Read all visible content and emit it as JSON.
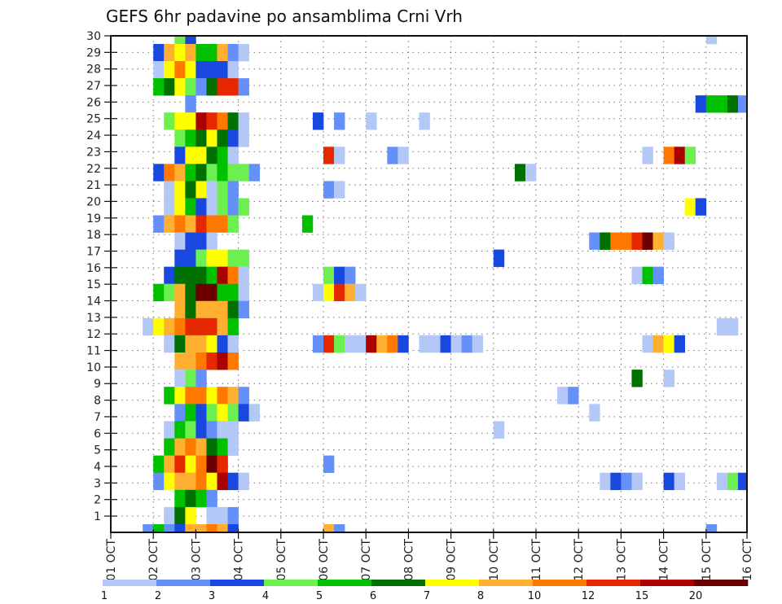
{
  "chart_data": {
    "type": "heatmap",
    "title": "GEFS 6hr padavine po ansamblima Crni Vrh",
    "xlabel": "",
    "ylabel": "",
    "x_tick_labels": [
      "01 OCT",
      "02 OCT",
      "03 OCT",
      "04 OCT",
      "05 OCT",
      "06 OCT",
      "07 OCT",
      "08 OCT",
      "09 OCT",
      "10 OCT",
      "11 OCT",
      "12 OCT",
      "13 OCT",
      "14 OCT",
      "15 OCT",
      "16 OCT"
    ],
    "x_unit": "6-hour step from 01 OCT 00Z",
    "x_range": [
      0,
      60
    ],
    "y_tick_labels": [
      "1",
      "2",
      "3",
      "4",
      "5",
      "6",
      "7",
      "8",
      "9",
      "10",
      "11",
      "12",
      "13",
      "14",
      "15",
      "16",
      "17",
      "18",
      "19",
      "20",
      "21",
      "22",
      "23",
      "24",
      "25",
      "26",
      "27",
      "28",
      "29",
      "30"
    ],
    "y_range": [
      0,
      30
    ],
    "grid": true,
    "legend": {
      "placement": "bottom",
      "levels": [
        "1",
        "2",
        "3",
        "4",
        "5",
        "6",
        "7",
        "8",
        "10",
        "12",
        "15",
        "20"
      ],
      "colors": [
        "#b4c8f8",
        "#6490f8",
        "#1848e0",
        "#6cf050",
        "#00c000",
        "#007000",
        "#ffff00",
        "#ffb030",
        "#ff7800",
        "#e62800",
        "#aa0000",
        "#6c0000"
      ]
    },
    "cell_encoding": "[step, color_class] where color_class indexes legend.levels (value between that level and the next)",
    "rows": [
      {
        "member": 30,
        "cells": [
          [
            6,
            3
          ],
          [
            7,
            2
          ],
          [
            56,
            0
          ]
        ]
      },
      {
        "member": 29,
        "cells": [
          [
            4,
            2
          ],
          [
            5,
            7
          ],
          [
            6,
            6
          ],
          [
            7,
            7
          ],
          [
            8,
            4
          ],
          [
            9,
            4
          ],
          [
            10,
            7
          ],
          [
            11,
            1
          ],
          [
            12,
            0
          ]
        ]
      },
      {
        "member": 28,
        "cells": [
          [
            4,
            0
          ],
          [
            5,
            6
          ],
          [
            6,
            8
          ],
          [
            7,
            6
          ],
          [
            8,
            2
          ],
          [
            9,
            2
          ],
          [
            10,
            2
          ],
          [
            11,
            0
          ]
        ]
      },
      {
        "member": 27,
        "cells": [
          [
            4,
            4
          ],
          [
            5,
            5
          ],
          [
            6,
            6
          ],
          [
            7,
            3
          ],
          [
            8,
            1
          ],
          [
            9,
            5
          ],
          [
            10,
            9
          ],
          [
            11,
            9
          ],
          [
            12,
            1
          ]
        ]
      },
      {
        "member": 26,
        "cells": [
          [
            7,
            1
          ],
          [
            55,
            2
          ],
          [
            56,
            4
          ],
          [
            57,
            4
          ],
          [
            58,
            5
          ],
          [
            59,
            1
          ]
        ]
      },
      {
        "member": 25,
        "cells": [
          [
            5,
            3
          ],
          [
            6,
            6
          ],
          [
            7,
            6
          ],
          [
            8,
            10
          ],
          [
            9,
            9
          ],
          [
            10,
            8
          ],
          [
            11,
            5
          ],
          [
            12,
            0
          ],
          [
            19,
            2
          ],
          [
            21,
            1
          ],
          [
            24,
            0
          ],
          [
            29,
            0
          ]
        ]
      },
      {
        "member": 24,
        "cells": [
          [
            6,
            3
          ],
          [
            7,
            4
          ],
          [
            8,
            5
          ],
          [
            9,
            6
          ],
          [
            10,
            5
          ],
          [
            11,
            2
          ],
          [
            12,
            0
          ]
        ]
      },
      {
        "member": 23,
        "cells": [
          [
            6,
            2
          ],
          [
            7,
            6
          ],
          [
            8,
            6
          ],
          [
            9,
            5
          ],
          [
            10,
            4
          ],
          [
            11,
            0
          ],
          [
            20,
            9
          ],
          [
            21,
            0
          ],
          [
            26,
            1
          ],
          [
            27,
            0
          ],
          [
            50,
            0
          ],
          [
            52,
            8
          ],
          [
            53,
            10
          ],
          [
            54,
            3
          ]
        ]
      },
      {
        "member": 22,
        "cells": [
          [
            4,
            2
          ],
          [
            5,
            8
          ],
          [
            6,
            7
          ],
          [
            7,
            4
          ],
          [
            8,
            5
          ],
          [
            9,
            3
          ],
          [
            10,
            4
          ],
          [
            11,
            3
          ],
          [
            12,
            3
          ],
          [
            13,
            1
          ],
          [
            38,
            5
          ],
          [
            39,
            0
          ]
        ]
      },
      {
        "member": 21,
        "cells": [
          [
            5,
            0
          ],
          [
            6,
            6
          ],
          [
            7,
            5
          ],
          [
            8,
            6
          ],
          [
            9,
            0
          ],
          [
            10,
            3
          ],
          [
            11,
            1
          ],
          [
            20,
            1
          ],
          [
            21,
            0
          ]
        ]
      },
      {
        "member": 20,
        "cells": [
          [
            5,
            0
          ],
          [
            6,
            6
          ],
          [
            7,
            4
          ],
          [
            8,
            2
          ],
          [
            9,
            0
          ],
          [
            10,
            3
          ],
          [
            11,
            1
          ],
          [
            12,
            3
          ],
          [
            54,
            6
          ],
          [
            55,
            2
          ]
        ]
      },
      {
        "member": 19,
        "cells": [
          [
            4,
            1
          ],
          [
            5,
            7
          ],
          [
            6,
            8
          ],
          [
            7,
            7
          ],
          [
            8,
            9
          ],
          [
            9,
            8
          ],
          [
            10,
            8
          ],
          [
            11,
            3
          ],
          [
            18,
            4
          ]
        ]
      },
      {
        "member": 18,
        "cells": [
          [
            6,
            0
          ],
          [
            7,
            2
          ],
          [
            8,
            2
          ],
          [
            9,
            0
          ],
          [
            45,
            1
          ],
          [
            46,
            5
          ],
          [
            47,
            8
          ],
          [
            48,
            8
          ],
          [
            49,
            9
          ],
          [
            50,
            11
          ],
          [
            51,
            7
          ],
          [
            52,
            0
          ]
        ]
      },
      {
        "member": 17,
        "cells": [
          [
            6,
            2
          ],
          [
            7,
            2
          ],
          [
            8,
            3
          ],
          [
            9,
            6
          ],
          [
            10,
            6
          ],
          [
            11,
            3
          ],
          [
            12,
            3
          ],
          [
            36,
            2
          ]
        ]
      },
      {
        "member": 16,
        "cells": [
          [
            5,
            2
          ],
          [
            6,
            5
          ],
          [
            7,
            5
          ],
          [
            8,
            5
          ],
          [
            9,
            4
          ],
          [
            10,
            10
          ],
          [
            11,
            8
          ],
          [
            12,
            0
          ],
          [
            20,
            3
          ],
          [
            21,
            2
          ],
          [
            22,
            1
          ],
          [
            49,
            0
          ],
          [
            50,
            4
          ],
          [
            51,
            1
          ]
        ]
      },
      {
        "member": 15,
        "cells": [
          [
            4,
            4
          ],
          [
            5,
            3
          ],
          [
            6,
            7
          ],
          [
            7,
            5
          ],
          [
            8,
            11
          ],
          [
            9,
            11
          ],
          [
            10,
            4
          ],
          [
            11,
            4
          ],
          [
            12,
            0
          ],
          [
            19,
            0
          ],
          [
            20,
            6
          ],
          [
            21,
            9
          ],
          [
            22,
            7
          ],
          [
            23,
            0
          ]
        ]
      },
      {
        "member": 14,
        "cells": [
          [
            6,
            7
          ],
          [
            7,
            5
          ],
          [
            8,
            7
          ],
          [
            9,
            7
          ],
          [
            10,
            7
          ],
          [
            11,
            5
          ],
          [
            12,
            1
          ]
        ]
      },
      {
        "member": 12,
        "cells": [
          [
            3,
            0
          ],
          [
            4,
            6
          ],
          [
            5,
            7
          ],
          [
            6,
            8
          ],
          [
            7,
            9
          ],
          [
            8,
            9
          ],
          [
            9,
            9
          ],
          [
            10,
            7
          ],
          [
            11,
            4
          ],
          [
            57,
            0
          ],
          [
            58,
            0
          ]
        ]
      },
      {
        "member": 11,
        "cells": [
          [
            5,
            0
          ],
          [
            6,
            5
          ],
          [
            7,
            7
          ],
          [
            8,
            7
          ],
          [
            9,
            6
          ],
          [
            10,
            2
          ],
          [
            11,
            0
          ],
          [
            19,
            1
          ],
          [
            20,
            9
          ],
          [
            21,
            3
          ],
          [
            22,
            0
          ],
          [
            23,
            0
          ],
          [
            24,
            10
          ],
          [
            25,
            7
          ],
          [
            26,
            8
          ],
          [
            27,
            2
          ],
          [
            29,
            0
          ],
          [
            30,
            0
          ],
          [
            31,
            2
          ],
          [
            32,
            0
          ],
          [
            33,
            1
          ],
          [
            34,
            0
          ],
          [
            50,
            0
          ],
          [
            51,
            7
          ],
          [
            52,
            6
          ],
          [
            53,
            2
          ]
        ]
      },
      {
        "member": 10,
        "cells": [
          [
            6,
            7
          ],
          [
            7,
            7
          ],
          [
            8,
            8
          ],
          [
            9,
            9
          ],
          [
            10,
            10
          ],
          [
            11,
            8
          ]
        ]
      },
      {
        "member": 9,
        "cells": [
          [
            6,
            0
          ],
          [
            7,
            3
          ],
          [
            8,
            1
          ],
          [
            49,
            5
          ],
          [
            52,
            0
          ]
        ]
      },
      {
        "member": 8,
        "cells": [
          [
            5,
            4
          ],
          [
            6,
            6
          ],
          [
            7,
            8
          ],
          [
            8,
            8
          ],
          [
            9,
            6
          ],
          [
            10,
            8
          ],
          [
            11,
            7
          ],
          [
            12,
            1
          ],
          [
            42,
            0
          ],
          [
            43,
            1
          ]
        ]
      },
      {
        "member": 7,
        "cells": [
          [
            6,
            1
          ],
          [
            7,
            4
          ],
          [
            8,
            2
          ],
          [
            9,
            3
          ],
          [
            10,
            6
          ],
          [
            11,
            3
          ],
          [
            12,
            2
          ],
          [
            13,
            0
          ],
          [
            45,
            0
          ]
        ]
      },
      {
        "member": 6,
        "cells": [
          [
            5,
            0
          ],
          [
            6,
            4
          ],
          [
            7,
            3
          ],
          [
            8,
            2
          ],
          [
            9,
            1
          ],
          [
            10,
            0
          ],
          [
            11,
            0
          ],
          [
            36,
            0
          ]
        ]
      },
      {
        "member": 5,
        "cells": [
          [
            5,
            4
          ],
          [
            6,
            7
          ],
          [
            7,
            8
          ],
          [
            8,
            7
          ],
          [
            9,
            5
          ],
          [
            10,
            4
          ],
          [
            11,
            0
          ]
        ]
      },
      {
        "member": 4,
        "cells": [
          [
            4,
            4
          ],
          [
            5,
            7
          ],
          [
            6,
            9
          ],
          [
            7,
            6
          ],
          [
            8,
            8
          ],
          [
            9,
            11
          ],
          [
            10,
            9
          ],
          [
            20,
            1
          ]
        ]
      },
      {
        "member": 3,
        "cells": [
          [
            4,
            1
          ],
          [
            5,
            6
          ],
          [
            6,
            7
          ],
          [
            7,
            7
          ],
          [
            8,
            8
          ],
          [
            9,
            6
          ],
          [
            10,
            10
          ],
          [
            11,
            2
          ],
          [
            12,
            0
          ],
          [
            46,
            0
          ],
          [
            47,
            2
          ],
          [
            48,
            1
          ],
          [
            49,
            0
          ],
          [
            52,
            2
          ],
          [
            53,
            0
          ],
          [
            57,
            0
          ],
          [
            58,
            3
          ],
          [
            59,
            2
          ]
        ]
      },
      {
        "member": 2,
        "cells": [
          [
            6,
            4
          ],
          [
            7,
            5
          ],
          [
            8,
            4
          ],
          [
            9,
            1
          ]
        ]
      },
      {
        "member": 1,
        "cells": [
          [
            5,
            0
          ],
          [
            6,
            5
          ],
          [
            7,
            6
          ],
          [
            9,
            0
          ],
          [
            10,
            0
          ],
          [
            11,
            1
          ]
        ]
      },
      {
        "member": 0,
        "cells": [
          [
            3,
            1
          ],
          [
            4,
            4
          ],
          [
            5,
            1
          ],
          [
            6,
            2
          ],
          [
            7,
            7
          ],
          [
            8,
            7
          ],
          [
            9,
            8
          ],
          [
            10,
            7
          ],
          [
            11,
            2
          ],
          [
            20,
            7
          ],
          [
            21,
            1
          ],
          [
            56,
            1
          ]
        ]
      }
    ]
  }
}
